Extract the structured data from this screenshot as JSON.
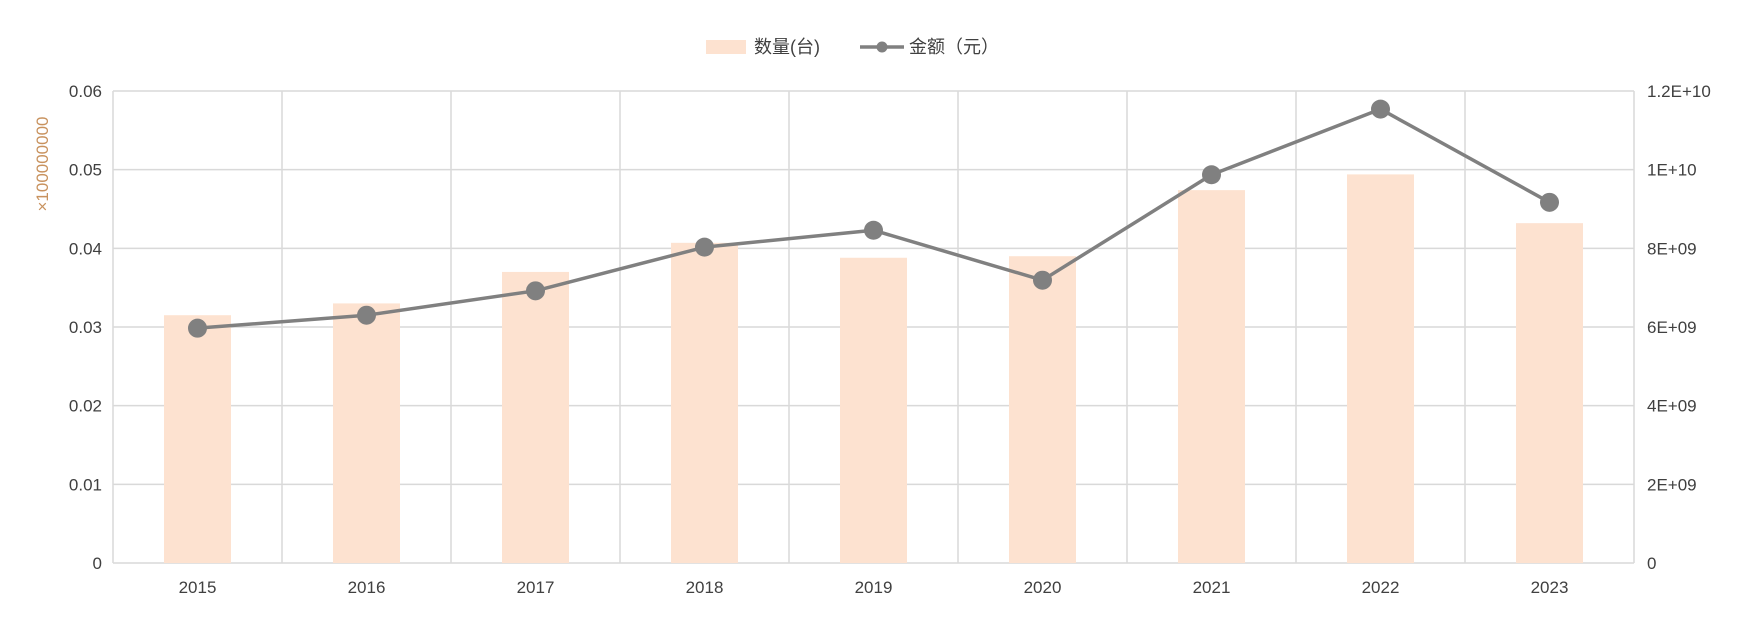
{
  "chart_data": {
    "type": "bar",
    "categories": [
      "2015",
      "2016",
      "2017",
      "2018",
      "2019",
      "2020",
      "2021",
      "2022",
      "2023"
    ],
    "series": [
      {
        "name": "数量(台)",
        "type": "bar",
        "axis": "left",
        "color": "#fde2d0",
        "values": [
          0.0315,
          0.033,
          0.037,
          0.0407,
          0.0388,
          0.039,
          0.0474,
          0.0494,
          0.0432
        ]
      },
      {
        "name": "金额（元）",
        "type": "line",
        "axis": "right",
        "color": "#808080",
        "values": [
          5970000000,
          6300000000,
          6920000000,
          8030000000,
          8460000000,
          7190000000,
          9870000000,
          11540000000,
          9170000000
        ]
      }
    ],
    "y_left": {
      "ylim": [
        0,
        0.06
      ],
      "ticks": [
        0,
        0.01,
        0.02,
        0.03,
        0.04,
        0.05,
        0.06
      ],
      "tick_labels": [
        "0",
        "0.01",
        "0.02",
        "0.03",
        "0.04",
        "0.05",
        "0.06"
      ],
      "unit_label": "×100000000",
      "unit_color": "#c8925e"
    },
    "y_right": {
      "ylim": [
        0,
        12000000000
      ],
      "ticks": [
        0,
        2000000000,
        4000000000,
        6000000000,
        8000000000,
        10000000000,
        12000000000
      ],
      "tick_labels": [
        "0",
        "2E+09",
        "4E+09",
        "6E+09",
        "8E+09",
        "1E+10",
        "1.2E+10"
      ]
    },
    "legend": {
      "position": "top-center"
    },
    "grid": true,
    "colors": {
      "grid": "#d9d9d9",
      "tick_text": "#404040"
    }
  }
}
